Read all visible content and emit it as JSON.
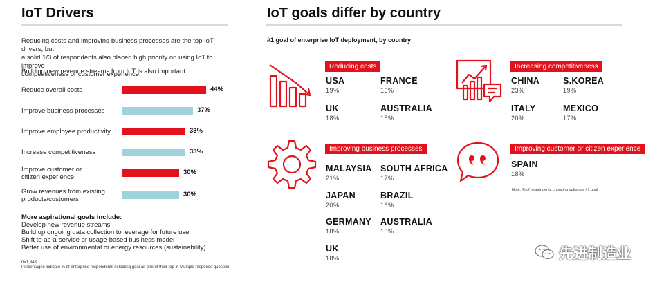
{
  "left": {
    "title": "IoT Drivers",
    "intro": [
      "Reducing costs and improving business processes are the top IoT drivers, but",
      "a solid 1/3 of respondents also placed high priority on using IoT to improve",
      "competitiveness or customer experience."
    ],
    "intro2": "Building new revenue streams from IoT is also important.",
    "more_title": "More aspirational goals include:",
    "more_items": [
      "Develop new revenue streams",
      "Build up ongoing data collection to leverage for future use",
      "Shift to as-a-service or usage-based business model",
      "Better use of environmental or energy resources (sustainability)"
    ],
    "n": "n=1,343",
    "footnote": "Percentages indicate % of enterprise respondents selecting goal as one of their top 3. Multiple response question."
  },
  "chart_data": {
    "type": "bar",
    "orientation": "horizontal",
    "categories": [
      [
        "Reduce overall costs"
      ],
      [
        "Improve business processes"
      ],
      [
        "Improve employee productivity"
      ],
      [
        "Increase competitiveness"
      ],
      [
        "Improve customer or",
        "citizen experience"
      ],
      [
        "Grow revenues from existing",
        "products/customers"
      ]
    ],
    "values": [
      44,
      37,
      33,
      33,
      30,
      30
    ],
    "value_labels": [
      "44%",
      "37%",
      "33%",
      "33%",
      "30%",
      "30%"
    ],
    "colors": [
      "#e3111c",
      "#9fd3dc",
      "#e3111c",
      "#9fd3dc",
      "#e3111c",
      "#9fd3dc"
    ],
    "xlim": [
      0,
      44
    ]
  },
  "right": {
    "title": "IoT goals differ by country",
    "subtitle": "#1 goal of enterprise IoT deployment, by country",
    "note": "Note: % of respondents choosing option as #1 goal",
    "accent": "#e3111c",
    "groups": [
      {
        "name": "Reducing costs",
        "icon": "declining-bar-chart-icon",
        "countries": [
          {
            "name": "USA",
            "pct": "19%"
          },
          {
            "name": "FRANCE",
            "pct": "16%"
          },
          {
            "name": "UK",
            "pct": "18%"
          },
          {
            "name": "AUSTRALIA",
            "pct": "15%"
          }
        ]
      },
      {
        "name": "Increasing competitiveness",
        "icon": "rising-chart-icon",
        "countries": [
          {
            "name": "CHINA",
            "pct": "23%"
          },
          {
            "name": "S.KOREA",
            "pct": "19%"
          },
          {
            "name": "ITALY",
            "pct": "20%"
          },
          {
            "name": "MEXICO",
            "pct": "17%"
          }
        ]
      },
      {
        "name": "Improving business processes",
        "icon": "gear-icon",
        "countries": [
          {
            "name": "MALAYSIA",
            "pct": "21%"
          },
          {
            "name": "SOUTH AFRICA",
            "pct": "17%"
          },
          {
            "name": "JAPAN",
            "pct": "20%"
          },
          {
            "name": "BRAZIL",
            "pct": "16%"
          },
          {
            "name": "GERMANY",
            "pct": "18%"
          },
          {
            "name": "AUSTRALIA",
            "pct": "15%"
          },
          {
            "name": "UK",
            "pct": "18%"
          }
        ]
      },
      {
        "name": "Improving customer or citizen experience",
        "icon": "speech-bubble-quote-icon",
        "countries": [
          {
            "name": "SPAIN",
            "pct": "18%"
          }
        ]
      }
    ]
  },
  "watermark": "先进制造业"
}
